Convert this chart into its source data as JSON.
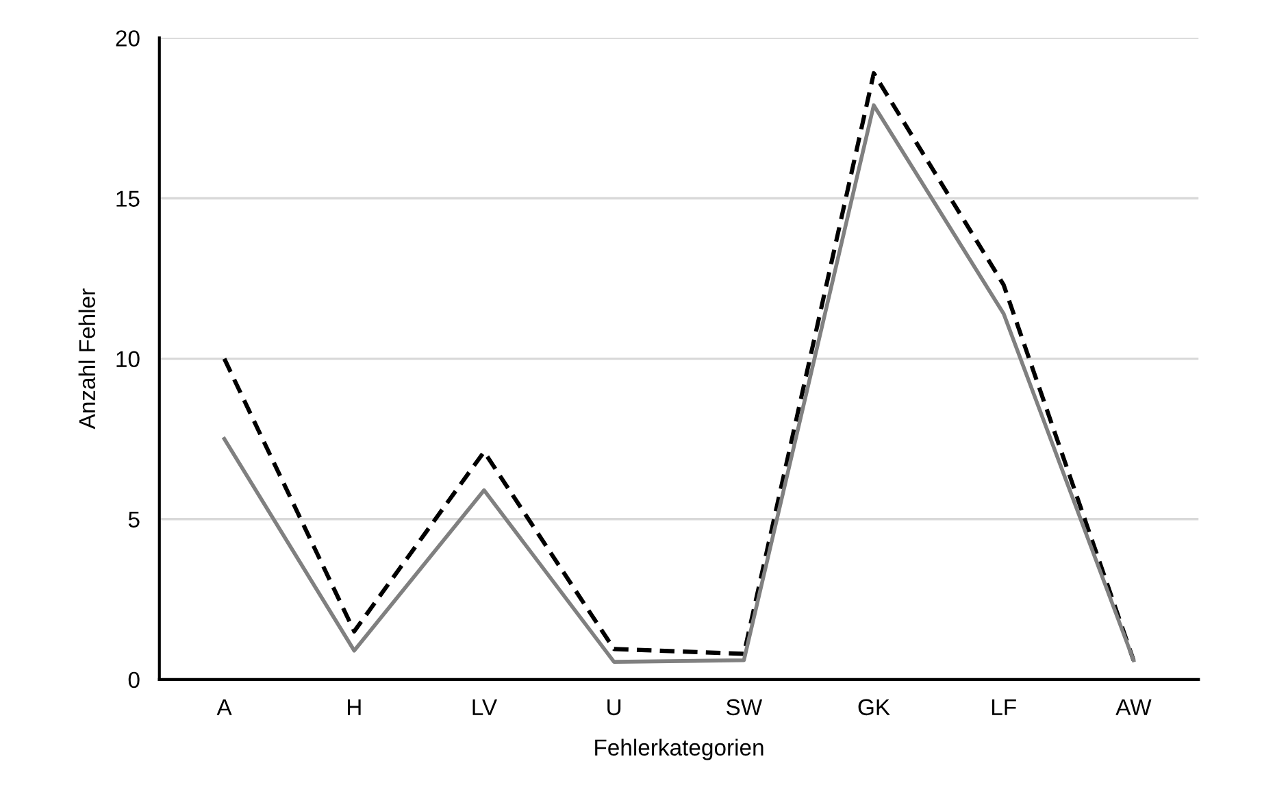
{
  "chart_data": {
    "type": "line",
    "xlabel": "Fehlerkategorien",
    "ylabel": "Anzahl Fehler",
    "categories": [
      "A",
      "H",
      "LV",
      "U",
      "SW",
      "GK",
      "LF",
      "AW"
    ],
    "series": [
      {
        "color": "#000000",
        "line_style": "dashed",
        "values": [
          10,
          1.5,
          7.1,
          0.95,
          0.8,
          18.9,
          12.3,
          0.6
        ]
      },
      {
        "color": "#808080",
        "line_style": "solid",
        "values": [
          7.5,
          0.9,
          5.9,
          0.55,
          0.6,
          17.9,
          11.4,
          0.6
        ]
      }
    ],
    "ylim": [
      0,
      20
    ],
    "yticks": [
      0,
      5,
      10,
      15,
      20
    ],
    "grid": "y",
    "legend": false,
    "marker": "none"
  }
}
